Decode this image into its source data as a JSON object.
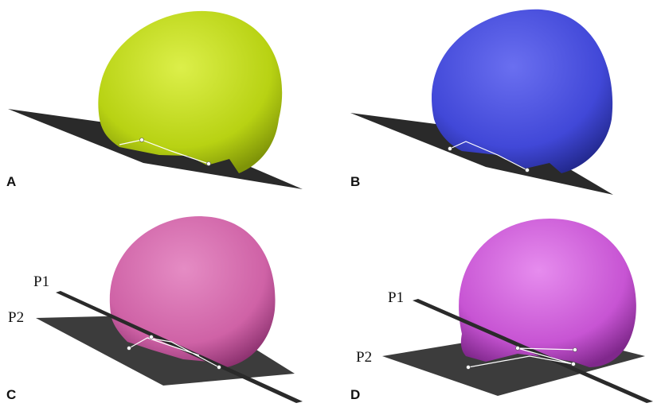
{
  "panels": [
    {
      "label": "A"
    },
    {
      "label": "B"
    },
    {
      "label": "C",
      "planes": [
        "P1",
        "P2"
      ]
    },
    {
      "label": "D",
      "planes": [
        "P1",
        "P2"
      ]
    }
  ]
}
